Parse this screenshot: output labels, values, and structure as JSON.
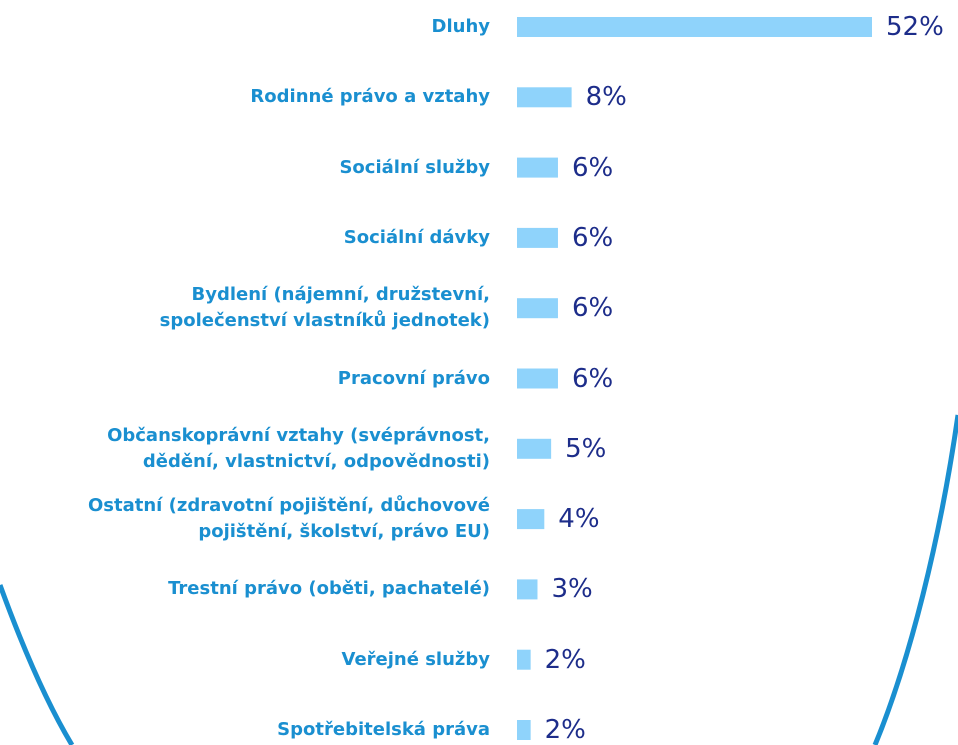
{
  "chart_data": {
    "type": "bar",
    "orientation": "horizontal",
    "color": "#8fd3fb",
    "categories": [
      "Dluhy",
      "Rodinné právo a vztahy",
      "Sociální služby",
      "Sociální dávky",
      "Bydlení (nájemní, družstevní,\nspolečenství vlastníků jednotek)",
      "Pracovní právo",
      "Občanskoprávní vztahy (svéprávnost,\ndědění, vlastnictví, odpovědnosti)",
      "Ostatní (zdravotní pojištění, důchovové\npojištění, školství, právo EU)",
      "Trestní právo (oběti, pachatelé)",
      "Veřejné služby",
      "Spotřebitelská práva"
    ],
    "values": [
      52,
      8,
      6,
      6,
      6,
      6,
      5,
      4,
      3,
      2,
      2
    ],
    "value_labels": [
      "52%",
      "8%",
      "6%",
      "6%",
      "6%",
      "6%",
      "5%",
      "4%",
      "3%",
      "2%",
      "2%"
    ]
  }
}
